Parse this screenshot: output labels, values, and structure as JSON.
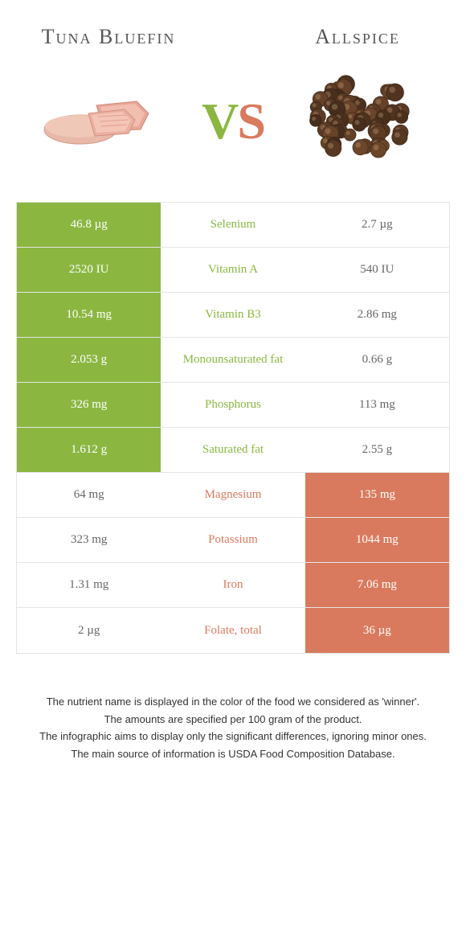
{
  "colors": {
    "left": "#8bb741",
    "right": "#d97a5e",
    "plain_bg": "#ffffff",
    "plain_text": "#666666",
    "border": "#e5e5e5"
  },
  "left_food": {
    "title": "Tuna Bluefin"
  },
  "right_food": {
    "title": "Allspice"
  },
  "rows": [
    {
      "left": "46.8 µg",
      "name": "Selenium",
      "right": "2.7 µg",
      "winner": "left"
    },
    {
      "left": "2520 IU",
      "name": "Vitamin A",
      "right": "540 IU",
      "winner": "left"
    },
    {
      "left": "10.54 mg",
      "name": "Vitamin B3",
      "right": "2.86 mg",
      "winner": "left"
    },
    {
      "left": "2.053 g",
      "name": "Monounsaturated fat",
      "right": "0.66 g",
      "winner": "left"
    },
    {
      "left": "326 mg",
      "name": "Phosphorus",
      "right": "113 mg",
      "winner": "left"
    },
    {
      "left": "1.612 g",
      "name": "Saturated fat",
      "right": "2.55 g",
      "winner": "left"
    },
    {
      "left": "64 mg",
      "name": "Magnesium",
      "right": "135 mg",
      "winner": "right"
    },
    {
      "left": "323 mg",
      "name": "Potassium",
      "right": "1044 mg",
      "winner": "right"
    },
    {
      "left": "1.31 mg",
      "name": "Iron",
      "right": "7.06 mg",
      "winner": "right"
    },
    {
      "left": "2 µg",
      "name": "Folate, total",
      "right": "36 µg",
      "winner": "right"
    }
  ],
  "footer": [
    "The nutrient name is displayed in the color of the food we considered as 'winner'.",
    "The amounts are specified per 100 gram of the product.",
    "The infographic aims to display only the significant differences, ignoring minor ones.",
    "The main source of information is USDA Food Composition Database."
  ]
}
